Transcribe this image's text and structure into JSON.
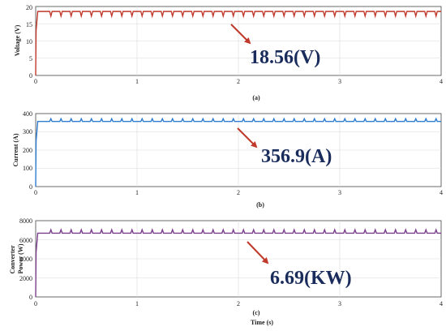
{
  "chart_data": [
    {
      "type": "line",
      "panel_label": "(a)",
      "xlabel": "",
      "ylabel": "Voltage (V)",
      "xlim": [
        0,
        4
      ],
      "ylim": [
        0,
        20
      ],
      "x_ticks": [
        "0",
        "1",
        "2",
        "3",
        "4"
      ],
      "y_ticks": [
        "0",
        "5",
        "10",
        "15",
        "20"
      ],
      "grid": true,
      "series": [
        {
          "color": "#c0392b",
          "rise_end_time": 0.02,
          "steady_value": 18.56,
          "periodic_dip_value": 17.2,
          "period_s": 0.1,
          "first_dip_s": 0.15
        }
      ],
      "annotation": {
        "text": "18.56(V)",
        "points_to": [
          1.95,
          18.56
        ]
      }
    },
    {
      "type": "line",
      "panel_label": "(b)",
      "xlabel": "",
      "ylabel": "Current (A)",
      "xlim": [
        0,
        4
      ],
      "ylim": [
        0,
        400
      ],
      "x_ticks": [
        "0",
        "1",
        "2",
        "3",
        "4"
      ],
      "y_ticks": [
        "0",
        "100",
        "200",
        "300",
        "400"
      ],
      "grid": true,
      "series": [
        {
          "color": "#2e7dd1",
          "start_value": 0,
          "rise_end_time": 0.02,
          "steady_value": 356.9,
          "periodic_peak_value": 372,
          "period_s": 0.1,
          "first_peak_s": 0.15
        }
      ],
      "annotation": {
        "text": "356.9(A)",
        "points_to": [
          2.0,
          356.9
        ]
      }
    },
    {
      "type": "line",
      "panel_label": "(c)",
      "xlabel": "Time (s)",
      "ylabel": "Converter Power (W)",
      "ylabel_lines": [
        "Converter",
        "Power (W)"
      ],
      "xlim": [
        0,
        4
      ],
      "ylim": [
        0,
        8000
      ],
      "x_ticks": [
        "0",
        "1",
        "2",
        "3",
        "4"
      ],
      "y_ticks": [
        "0",
        "2000",
        "4000",
        "6000",
        "8000"
      ],
      "grid": true,
      "series": [
        {
          "color": "#7b3f8c",
          "start_value": 0,
          "rise_end_time": 0.02,
          "steady_value": 6690,
          "periodic_peak_value": 7050,
          "period_s": 0.1,
          "first_peak_s": 0.15
        }
      ],
      "annotation": {
        "text": "6.69(KW)",
        "points_to": [
          2.1,
          6690
        ]
      }
    }
  ]
}
